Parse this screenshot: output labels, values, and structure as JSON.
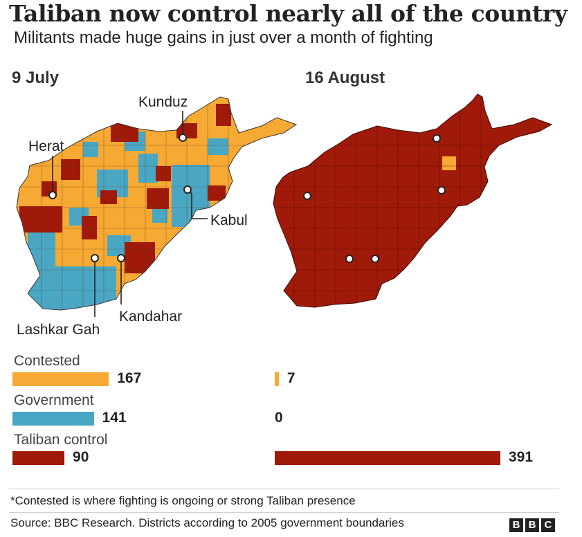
{
  "title": "Taliban now control nearly all of the country",
  "subtitle": "Militants made huge gains in just over a month of fighting",
  "colors": {
    "contested": "#f6a933",
    "government": "#4aa7c4",
    "taliban": "#a01a0a"
  },
  "chart_data": {
    "type": "bar",
    "title": "Taliban now control nearly all of the country",
    "subtitle": "Militants made huge gains in just over a month of fighting",
    "panels": [
      {
        "date": "9 July",
        "cities": [
          "Herat",
          "Kunduz",
          "Kabul",
          "Lashkar Gah",
          "Kandahar"
        ]
      },
      {
        "date": "16 August",
        "cities": []
      }
    ],
    "categories": [
      "Contested",
      "Government",
      "Taliban control"
    ],
    "series": [
      {
        "name": "9 July",
        "values": [
          167,
          141,
          90
        ]
      },
      {
        "name": "16 August",
        "values": [
          7,
          0,
          391
        ]
      }
    ],
    "unit": "districts",
    "xlim": [
      0,
      391
    ]
  },
  "footnote": "*Contested is where fighting is ongoing or strong Taliban presence",
  "source": "Source: BBC Research. Districts according to 2005 government boundaries",
  "logo": [
    "B",
    "B",
    "C"
  ]
}
